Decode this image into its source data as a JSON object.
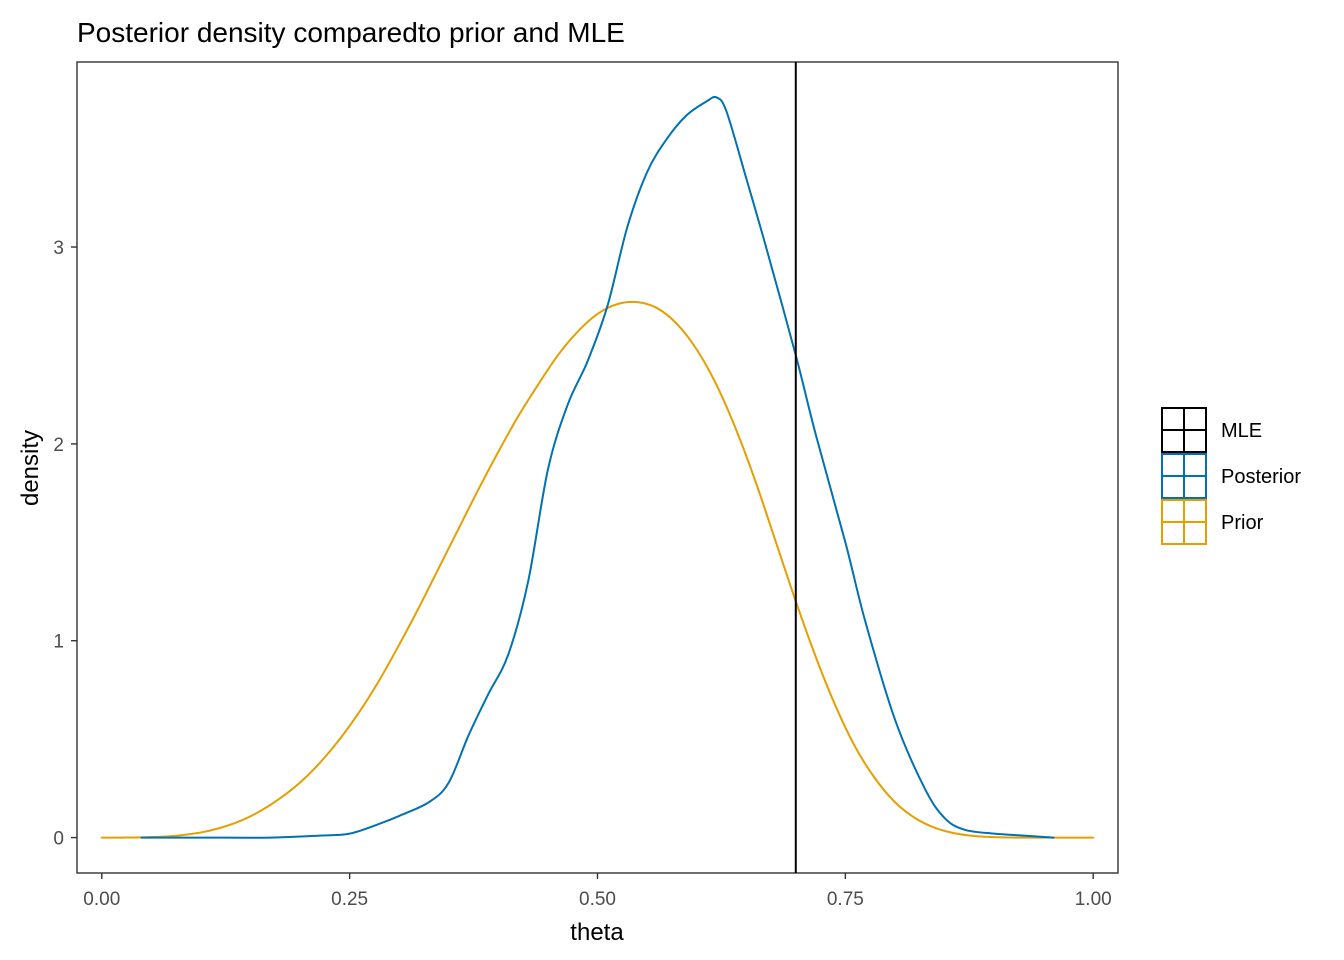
{
  "chart_data": {
    "type": "line",
    "title": "Posterior density comparedto prior and MLE",
    "xlabel": "theta",
    "ylabel": "density",
    "xlim": [
      -0.025,
      1.025
    ],
    "ylim": [
      -0.18,
      3.94
    ],
    "x_ticks": [
      0.0,
      0.25,
      0.5,
      0.75,
      1.0
    ],
    "x_tick_labels": [
      "0.00",
      "0.25",
      "0.50",
      "0.75",
      "1.00"
    ],
    "y_ticks": [
      0,
      1,
      2,
      3
    ],
    "y_tick_labels": [
      "0",
      "1",
      "2",
      "3"
    ],
    "grid": false,
    "legend_position": "right",
    "series": [
      {
        "name": "Posterior",
        "color": "#0072B2",
        "x": [
          0.04,
          0.1,
          0.17,
          0.22,
          0.25,
          0.28,
          0.3,
          0.33,
          0.35,
          0.37,
          0.39,
          0.41,
          0.43,
          0.45,
          0.47,
          0.49,
          0.51,
          0.53,
          0.55,
          0.57,
          0.59,
          0.61,
          0.62,
          0.63,
          0.65,
          0.67,
          0.7,
          0.72,
          0.75,
          0.77,
          0.8,
          0.83,
          0.85,
          0.87,
          0.9,
          0.93,
          0.96
        ],
        "y": [
          0.0,
          0.0,
          0.0,
          0.01,
          0.02,
          0.07,
          0.11,
          0.18,
          0.28,
          0.52,
          0.73,
          0.93,
          1.3,
          1.87,
          2.2,
          2.42,
          2.7,
          3.1,
          3.38,
          3.55,
          3.67,
          3.74,
          3.76,
          3.69,
          3.35,
          3.0,
          2.45,
          2.05,
          1.5,
          1.1,
          0.6,
          0.25,
          0.1,
          0.04,
          0.02,
          0.01,
          0.0
        ]
      },
      {
        "name": "Prior",
        "color": "#E69F00",
        "x": [
          0.0,
          0.02,
          0.04,
          0.06,
          0.08,
          0.1,
          0.12,
          0.14,
          0.16,
          0.18,
          0.2,
          0.22,
          0.24,
          0.26,
          0.28,
          0.3,
          0.32,
          0.34,
          0.36,
          0.38,
          0.4,
          0.42,
          0.44,
          0.46,
          0.48,
          0.5,
          0.52,
          0.54,
          0.56,
          0.58,
          0.6,
          0.62,
          0.64,
          0.66,
          0.68,
          0.7,
          0.72,
          0.74,
          0.76,
          0.78,
          0.8,
          0.82,
          0.84,
          0.86,
          0.88,
          0.9,
          0.92,
          0.94,
          0.96,
          0.98,
          1.0
        ],
        "y": [
          0.0,
          0.0,
          0.001,
          0.004,
          0.012,
          0.026,
          0.05,
          0.085,
          0.135,
          0.2,
          0.28,
          0.38,
          0.5,
          0.64,
          0.8,
          0.98,
          1.17,
          1.37,
          1.57,
          1.77,
          1.96,
          2.14,
          2.3,
          2.45,
          2.57,
          2.66,
          2.71,
          2.72,
          2.69,
          2.61,
          2.48,
          2.3,
          2.07,
          1.8,
          1.5,
          1.2,
          0.92,
          0.67,
          0.46,
          0.3,
          0.18,
          0.1,
          0.05,
          0.022,
          0.008,
          0.002,
          0.0,
          0.0,
          0.0,
          0.0,
          0.0
        ]
      }
    ],
    "vline": {
      "name": "MLE",
      "x": 0.7,
      "color": "#000000"
    },
    "legend": [
      {
        "label": "MLE",
        "color": "#000000"
      },
      {
        "label": "Posterior",
        "color": "#0072B2"
      },
      {
        "label": "Prior",
        "color": "#E69F00"
      }
    ]
  }
}
